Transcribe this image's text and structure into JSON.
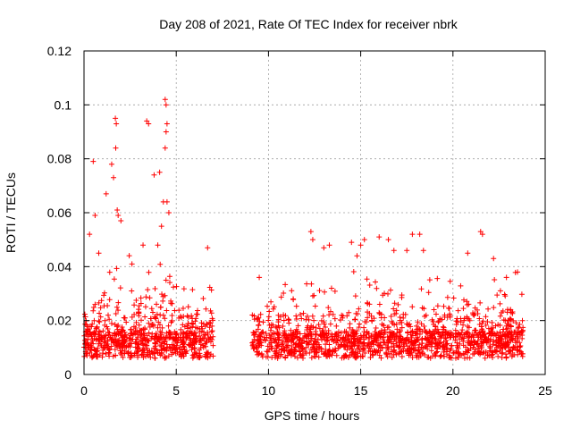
{
  "chart_data": {
    "type": "scatter",
    "title": "Day 208 of 2021, Rate Of TEC Index for receiver nbrk",
    "xlabel": "GPS time / hours",
    "ylabel": "ROTI / TECUs",
    "xlim": [
      0,
      25
    ],
    "ylim": [
      0,
      0.12
    ],
    "xticks": [
      0,
      5,
      10,
      15,
      20,
      25
    ],
    "yticks": [
      0,
      0.02,
      0.04,
      0.06,
      0.08,
      0.1,
      0.12
    ],
    "xtick_labels": [
      "0",
      "5",
      "10",
      "15",
      "20",
      "25"
    ],
    "ytick_labels": [
      "0",
      "0.02",
      "0.04",
      "0.06",
      "0.08",
      "0.1",
      "0.12"
    ],
    "grid": true,
    "marker": "+",
    "color": "#ff0000",
    "data_gap_hours": [
      7.0,
      9.1
    ],
    "series": [
      {
        "name": "ROTI",
        "points": [
          [
            0.3,
            0.052
          ],
          [
            0.5,
            0.079
          ],
          [
            0.6,
            0.059
          ],
          [
            0.8,
            0.045
          ],
          [
            1.2,
            0.067
          ],
          [
            1.5,
            0.078
          ],
          [
            1.6,
            0.073
          ],
          [
            1.7,
            0.095
          ],
          [
            1.75,
            0.093
          ],
          [
            1.72,
            0.084
          ],
          [
            1.8,
            0.061
          ],
          [
            1.85,
            0.059
          ],
          [
            2.0,
            0.057
          ],
          [
            3.4,
            0.094
          ],
          [
            3.5,
            0.093
          ],
          [
            3.8,
            0.074
          ],
          [
            4.1,
            0.075
          ],
          [
            4.2,
            0.055
          ],
          [
            4.3,
            0.064
          ],
          [
            4.4,
            0.102
          ],
          [
            4.45,
            0.1
          ],
          [
            4.5,
            0.093
          ],
          [
            4.45,
            0.09
          ],
          [
            4.4,
            0.084
          ],
          [
            4.5,
            0.064
          ],
          [
            4.6,
            0.06
          ],
          [
            4.0,
            0.048
          ],
          [
            3.2,
            0.048
          ],
          [
            6.7,
            0.047
          ],
          [
            2.6,
            0.041
          ],
          [
            9.5,
            0.036
          ],
          [
            12.3,
            0.053
          ],
          [
            12.4,
            0.05
          ],
          [
            13.0,
            0.047
          ],
          [
            13.3,
            0.048
          ],
          [
            14.5,
            0.049
          ],
          [
            14.8,
            0.044
          ],
          [
            15.0,
            0.048
          ],
          [
            15.2,
            0.05
          ],
          [
            16.0,
            0.051
          ],
          [
            16.5,
            0.05
          ],
          [
            16.8,
            0.046
          ],
          [
            17.5,
            0.046
          ],
          [
            17.8,
            0.052
          ],
          [
            18.2,
            0.052
          ],
          [
            18.4,
            0.046
          ],
          [
            21.5,
            0.053
          ],
          [
            21.6,
            0.052
          ],
          [
            20.8,
            0.045
          ],
          [
            22.2,
            0.043
          ],
          [
            23.5,
            0.038
          ],
          [
            22.9,
            0.036
          ]
        ]
      }
    ]
  }
}
